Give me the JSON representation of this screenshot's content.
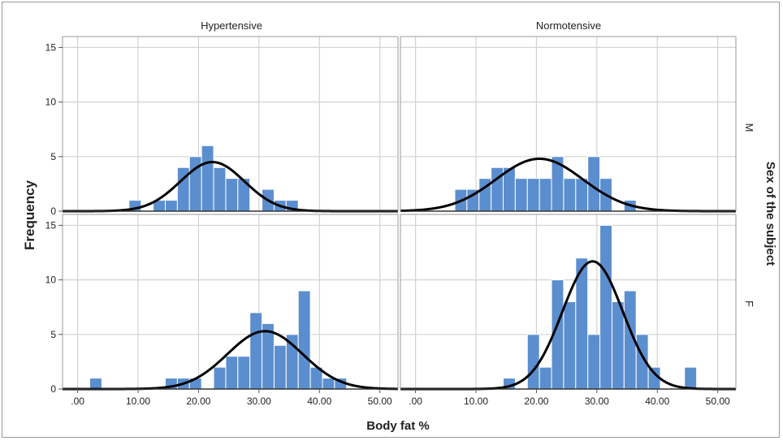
{
  "chart_data": {
    "type": "bar",
    "subtype": "histogram panel grid with normal curves",
    "xlabel": "Body fat %",
    "ylabel": "Frequency",
    "row_title": "Sex of the subject",
    "column_labels": [
      "Hypertensive",
      "Normotensive"
    ],
    "row_labels": [
      "M",
      "F"
    ],
    "xlim": [
      -2.5,
      53
    ],
    "ylim": [
      0,
      16
    ],
    "xticks": [
      0,
      10,
      20,
      30,
      40,
      50
    ],
    "xtick_labels": [
      ".00",
      "10.00",
      "20.00",
      "30.00",
      "40.00",
      "50.00"
    ],
    "yticks": [
      0,
      5,
      10,
      15
    ],
    "ytick_labels": [
      "0",
      "5",
      "10",
      "15"
    ],
    "grid": true,
    "bar_color": "#5b8ecf",
    "bar_edge_color": "#ffffff",
    "curve_color": "#000000",
    "bin_width": 2,
    "panels": [
      {
        "column": "Hypertensive",
        "row": "M",
        "bins": [
          {
            "start": 8.5,
            "count": 1
          },
          {
            "start": 12.5,
            "count": 1
          },
          {
            "start": 14.5,
            "count": 1
          },
          {
            "start": 16.5,
            "count": 4
          },
          {
            "start": 18.5,
            "count": 5
          },
          {
            "start": 20.5,
            "count": 6
          },
          {
            "start": 22.5,
            "count": 4
          },
          {
            "start": 24.5,
            "count": 3
          },
          {
            "start": 26.5,
            "count": 3
          },
          {
            "start": 30.5,
            "count": 2
          },
          {
            "start": 32.5,
            "count": 1
          },
          {
            "start": 34.5,
            "count": 1
          }
        ],
        "normal_curve": {
          "mean": 22.3,
          "peak": 4.5,
          "sd": 5.3
        }
      },
      {
        "column": "Normotensive",
        "row": "M",
        "bins": [
          {
            "start": 6.5,
            "count": 2
          },
          {
            "start": 8.5,
            "count": 2
          },
          {
            "start": 10.5,
            "count": 3
          },
          {
            "start": 12.5,
            "count": 4
          },
          {
            "start": 14.5,
            "count": 4
          },
          {
            "start": 16.5,
            "count": 3
          },
          {
            "start": 18.5,
            "count": 3
          },
          {
            "start": 20.5,
            "count": 3
          },
          {
            "start": 22.5,
            "count": 5
          },
          {
            "start": 24.5,
            "count": 3
          },
          {
            "start": 26.5,
            "count": 3
          },
          {
            "start": 28.5,
            "count": 5
          },
          {
            "start": 30.5,
            "count": 3
          },
          {
            "start": 34.5,
            "count": 1
          }
        ],
        "normal_curve": {
          "mean": 20.5,
          "peak": 4.8,
          "sd": 7.2
        }
      },
      {
        "column": "Hypertensive",
        "row": "F",
        "bins": [
          {
            "start": 2.0,
            "count": 1
          },
          {
            "start": 14.5,
            "count": 1
          },
          {
            "start": 16.5,
            "count": 1
          },
          {
            "start": 18.5,
            "count": 1
          },
          {
            "start": 22.5,
            "count": 2
          },
          {
            "start": 24.5,
            "count": 3
          },
          {
            "start": 26.5,
            "count": 3
          },
          {
            "start": 28.5,
            "count": 7
          },
          {
            "start": 30.5,
            "count": 6
          },
          {
            "start": 32.5,
            "count": 4
          },
          {
            "start": 34.5,
            "count": 5
          },
          {
            "start": 36.5,
            "count": 9
          },
          {
            "start": 38.5,
            "count": 2
          },
          {
            "start": 40.5,
            "count": 1
          },
          {
            "start": 42.5,
            "count": 1
          }
        ],
        "normal_curve": {
          "mean": 31.0,
          "peak": 5.3,
          "sd": 6.2
        }
      },
      {
        "column": "Normotensive",
        "row": "F",
        "bins": [
          {
            "start": 14.5,
            "count": 1
          },
          {
            "start": 18.5,
            "count": 5
          },
          {
            "start": 20.5,
            "count": 2
          },
          {
            "start": 22.5,
            "count": 10
          },
          {
            "start": 24.5,
            "count": 8
          },
          {
            "start": 26.5,
            "count": 12
          },
          {
            "start": 28.5,
            "count": 5
          },
          {
            "start": 30.5,
            "count": 15
          },
          {
            "start": 32.5,
            "count": 8
          },
          {
            "start": 34.5,
            "count": 9
          },
          {
            "start": 36.5,
            "count": 5
          },
          {
            "start": 38.5,
            "count": 2
          },
          {
            "start": 44.5,
            "count": 2
          }
        ],
        "normal_curve": {
          "mean": 29.3,
          "peak": 11.7,
          "sd": 5.0
        }
      }
    ]
  }
}
